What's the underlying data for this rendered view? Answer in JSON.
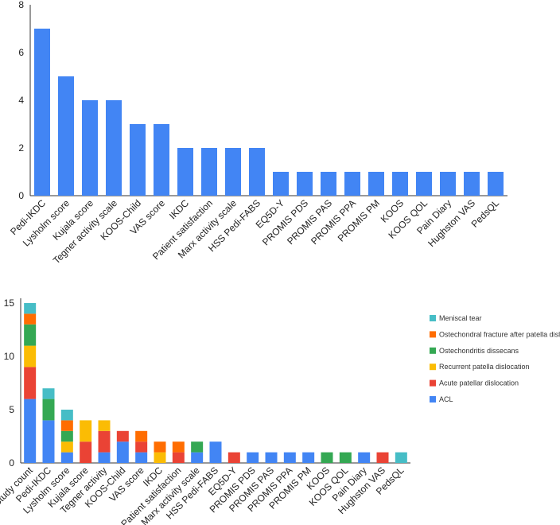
{
  "chart_data": [
    {
      "type": "bar",
      "title": "",
      "xlabel": "",
      "ylabel": "",
      "ylim": [
        0,
        8
      ],
      "yticks": [
        0,
        2,
        4,
        6,
        8
      ],
      "categories": [
        "Pedi-IKDC",
        "Lysholm score",
        "Kujala score",
        "Tegner activity scale",
        "KOOS-Child",
        "VAS score",
        "IKDC",
        "Patient satisfaction",
        "Marx activity scale",
        "HSS Pedi-FABS",
        "EQ5D-Y",
        "PROMIS PDS",
        "PROMIS PAS",
        "PROMIS PPA",
        "PROMIS PM",
        "KOOS",
        "KOOS QOL",
        "Pain Diary",
        "Hughston VAS",
        "PedsQL"
      ],
      "values": [
        7,
        5,
        4,
        4,
        3,
        3,
        2,
        2,
        2,
        2,
        1,
        1,
        1,
        1,
        1,
        1,
        1,
        1,
        1,
        1
      ],
      "color": "#4285f4"
    },
    {
      "type": "bar",
      "stacked": true,
      "title": "",
      "xlabel": "",
      "ylabel": "",
      "ylim": [
        0,
        15
      ],
      "yticks": [
        0,
        5,
        10,
        15
      ],
      "legend_position": "right",
      "categories": [
        "Study count",
        "Pedi-IKDC",
        "Lysholm score",
        "Kujala score",
        "Tegner activity",
        "KOOS-Child",
        "VAS score",
        "IKDC",
        "Patient satisfaction",
        "Marx activity scale",
        "HSS Pedi-FABS",
        "EQ5D-Y",
        "PROMIS PDS",
        "PROMIS PAS",
        "PROMIS PPA",
        "PROMIS PM",
        "KOOS",
        "KOOS QOL",
        "Pain Diary",
        "Hughston VAS",
        "PedsQL"
      ],
      "series": [
        {
          "name": "ACL",
          "color": "#4285f4",
          "values": [
            6,
            4,
            1,
            0,
            1,
            2,
            1,
            0,
            0,
            1,
            2,
            0,
            1,
            1,
            1,
            1,
            0,
            0,
            1,
            0,
            0
          ]
        },
        {
          "name": "Acute patellar dislocation",
          "color": "#ea4335",
          "values": [
            3,
            0,
            0,
            2,
            2,
            1,
            1,
            0,
            1,
            0,
            0,
            1,
            0,
            0,
            0,
            0,
            0,
            0,
            0,
            1,
            0
          ]
        },
        {
          "name": "Recurrent patella dislocation",
          "color": "#fbbc04",
          "values": [
            2,
            0,
            1,
            2,
            1,
            0,
            0,
            1,
            0,
            0,
            0,
            0,
            0,
            0,
            0,
            0,
            0,
            0,
            0,
            0,
            0
          ]
        },
        {
          "name": "Ostechondritis dissecans",
          "color": "#34a853",
          "values": [
            2,
            2,
            1,
            0,
            0,
            0,
            0,
            0,
            0,
            1,
            0,
            0,
            0,
            0,
            0,
            0,
            1,
            1,
            0,
            0,
            0
          ]
        },
        {
          "name": "Ostechondral fracture after patella dislocation",
          "color": "#ff6d01",
          "values": [
            1,
            0,
            1,
            0,
            0,
            0,
            1,
            1,
            1,
            0,
            0,
            0,
            0,
            0,
            0,
            0,
            0,
            0,
            0,
            0,
            0
          ]
        },
        {
          "name": "Meniscal tear",
          "color": "#46bdc6",
          "values": [
            1,
            1,
            1,
            0,
            0,
            0,
            0,
            0,
            0,
            0,
            0,
            0,
            0,
            0,
            0,
            0,
            0,
            0,
            0,
            0,
            1
          ]
        }
      ]
    }
  ]
}
